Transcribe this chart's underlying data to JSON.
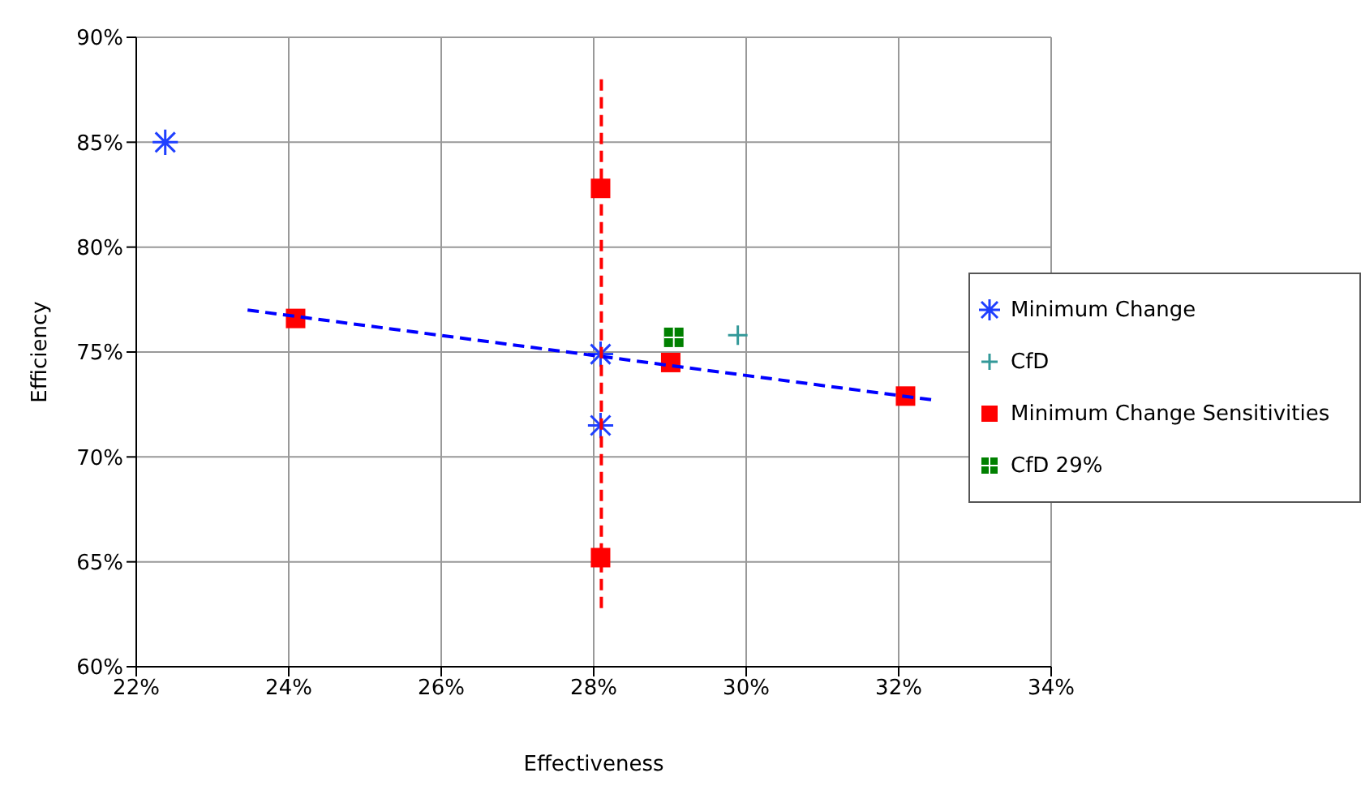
{
  "chart_data": {
    "type": "scatter",
    "xlabel": "Effectiveness",
    "ylabel": "Efficiency",
    "xlim": [
      22,
      34
    ],
    "xticks": [
      {
        "value": 22,
        "label": "22%"
      },
      {
        "value": 24,
        "label": "24%"
      },
      {
        "value": 26,
        "label": "26%"
      },
      {
        "value": 28,
        "label": "28%"
      },
      {
        "value": 30,
        "label": "30%"
      },
      {
        "value": 32,
        "label": "32%"
      },
      {
        "value": 34,
        "label": "34%"
      }
    ],
    "ylim": [
      60,
      90
    ],
    "yticks": [
      {
        "value": 60,
        "label": "60%"
      },
      {
        "value": 65,
        "label": "65%"
      },
      {
        "value": 70,
        "label": "70%"
      },
      {
        "value": 75,
        "label": "75%"
      },
      {
        "value": 80,
        "label": "80%"
      },
      {
        "value": 85,
        "label": "85%"
      },
      {
        "value": 90,
        "label": "90%"
      }
    ],
    "grid": true,
    "legend": "right",
    "series": [
      {
        "name": "Minimum Change",
        "type": "scatter",
        "color": "#1f3fff",
        "x": [
          22.38,
          28.09,
          28.09
        ],
        "values": [
          85,
          74.9,
          71.5
        ]
      },
      {
        "name": "CfD",
        "type": "scatter",
        "marker": "cross",
        "color": "#339999",
        "x": [
          29.89
        ],
        "values": [
          75.8
        ]
      },
      {
        "name": "Minimum Change Sensitivities",
        "type": "scatter",
        "marker": "square",
        "color": "#ff0000",
        "x": [
          24.09,
          28.09,
          28.09,
          29.01,
          32.09
        ],
        "values": [
          76.6,
          82.8,
          65.2,
          74.5,
          72.9
        ]
      },
      {
        "name": "CfD 29%",
        "type": "scatter",
        "marker": "square",
        "color": "#008000",
        "x": [
          29.05
        ],
        "values": [
          75.7
        ]
      },
      {
        "type": "line",
        "line_style": "dashed",
        "marker": "none",
        "color": "#0000ff",
        "x": [
          23.46,
          32.48
        ],
        "values": [
          77,
          72.7
        ]
      },
      {
        "type": "line",
        "line_style": "dashed",
        "marker": "none",
        "color": "#ff0000",
        "x": [
          28.1,
          28.1
        ],
        "values": [
          88,
          62.7
        ]
      }
    ]
  }
}
